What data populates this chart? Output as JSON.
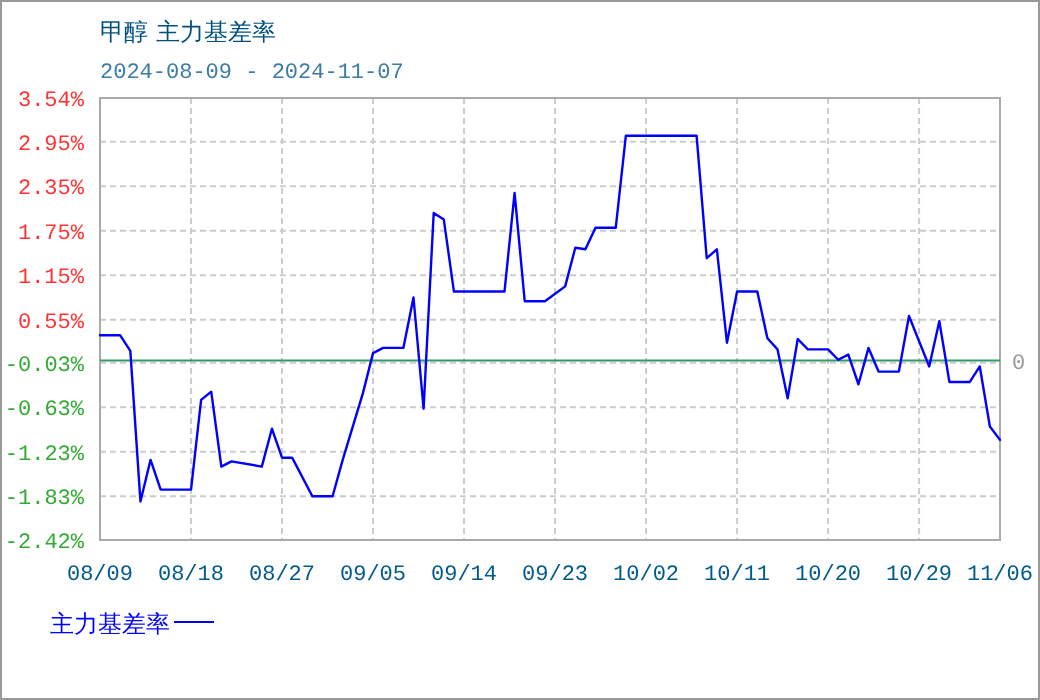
{
  "chart_data": {
    "type": "line",
    "title": "甲醇 主力基差率",
    "subtitle": "2024-08-09 - 2024-11-07",
    "x": [
      "2024-08-09",
      "2024-08-11",
      "2024-08-12",
      "2024-08-13",
      "2024-08-14",
      "2024-08-15",
      "2024-08-18",
      "2024-08-19",
      "2024-08-20",
      "2024-08-21",
      "2024-08-22",
      "2024-08-25",
      "2024-08-26",
      "2024-08-27",
      "2024-08-28",
      "2024-08-30",
      "2024-09-01",
      "2024-09-02",
      "2024-09-04",
      "2024-09-05",
      "2024-09-06",
      "2024-09-08",
      "2024-09-09",
      "2024-09-10",
      "2024-09-11",
      "2024-09-12",
      "2024-09-13",
      "2024-09-18",
      "2024-09-19",
      "2024-09-20",
      "2024-09-22",
      "2024-09-24",
      "2024-09-25",
      "2024-09-26",
      "2024-09-27",
      "2024-09-29",
      "2024-09-30",
      "2024-10-07",
      "2024-10-08",
      "2024-10-09",
      "2024-10-10",
      "2024-10-11",
      "2024-10-13",
      "2024-10-14",
      "2024-10-15",
      "2024-10-16",
      "2024-10-17",
      "2024-10-18",
      "2024-10-20",
      "2024-10-21",
      "2024-10-22",
      "2024-10-23",
      "2024-10-24",
      "2024-10-25",
      "2024-10-27",
      "2024-10-28",
      "2024-10-30",
      "2024-10-31",
      "2024-11-01",
      "2024-11-03",
      "2024-11-04",
      "2024-11-05",
      "2024-11-06"
    ],
    "series": [
      {
        "name": "主力基差率",
        "color": "#0000ff",
        "values": [
          0.34,
          0.34,
          0.13,
          -1.9,
          -1.34,
          -1.74,
          -1.74,
          -0.53,
          -0.42,
          -1.43,
          -1.36,
          -1.43,
          -0.92,
          -1.31,
          -1.31,
          -1.83,
          -1.83,
          -1.34,
          -0.44,
          0.1,
          0.17,
          0.17,
          0.85,
          -0.65,
          1.99,
          1.9,
          0.93,
          0.93,
          2.26,
          0.8,
          0.8,
          1.0,
          1.52,
          1.5,
          1.79,
          1.79,
          3.03,
          3.03,
          1.38,
          1.5,
          0.24,
          0.93,
          0.93,
          0.3,
          0.15,
          -0.51,
          0.29,
          0.15,
          0.15,
          0.01,
          0.08,
          -0.32,
          0.17,
          -0.15,
          -0.15,
          0.6,
          -0.08,
          0.53,
          -0.29,
          -0.29,
          -0.08,
          -0.89,
          -1.07
        ]
      }
    ],
    "xlim": [
      "2024-08-09",
      "2024-11-06"
    ],
    "xticks": [
      {
        "value": "2024-08-09",
        "label": "08/09"
      },
      {
        "value": "2024-08-18",
        "label": "08/18"
      },
      {
        "value": "2024-08-27",
        "label": "08/27"
      },
      {
        "value": "2024-09-05",
        "label": "09/05"
      },
      {
        "value": "2024-09-14",
        "label": "09/14"
      },
      {
        "value": "2024-09-23",
        "label": "09/23"
      },
      {
        "value": "2024-10-02",
        "label": "10/02"
      },
      {
        "value": "2024-10-11",
        "label": "10/11"
      },
      {
        "value": "2024-10-20",
        "label": "10/20"
      },
      {
        "value": "2024-10-29",
        "label": "10/29"
      },
      {
        "value": "2024-11-06",
        "label": "11/06"
      }
    ],
    "ylim": [
      -2.42,
      3.54
    ],
    "yticks": [
      {
        "value": 3.54,
        "label": "3.54%"
      },
      {
        "value": 2.95,
        "label": "2.95%"
      },
      {
        "value": 2.35,
        "label": "2.35%"
      },
      {
        "value": 1.75,
        "label": "1.75%"
      },
      {
        "value": 1.15,
        "label": "1.15%"
      },
      {
        "value": 0.55,
        "label": "0.55%"
      },
      {
        "value": -0.03,
        "label": "-0.03%"
      },
      {
        "value": -0.63,
        "label": "-0.63%"
      },
      {
        "value": -1.23,
        "label": "-1.23%"
      },
      {
        "value": -1.83,
        "label": "-1.83%"
      },
      {
        "value": -2.42,
        "label": "-2.42%"
      }
    ],
    "grid": true,
    "legend": "bottom",
    "ref_lines": [
      {
        "axis": "y",
        "value": 0,
        "label": "0",
        "color": "#339966"
      }
    ]
  }
}
